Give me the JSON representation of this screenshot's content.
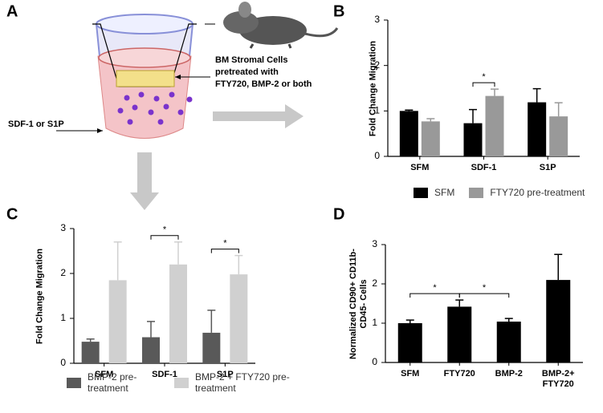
{
  "panel_a": {
    "label": "A",
    "stimulus": "SDF-1 or S1P",
    "cells": [
      "BM Stromal Cells",
      "pretreated with",
      "FTY720, BMP-2 or both"
    ]
  },
  "chart_data": [
    {
      "type": "bar",
      "label": "B",
      "y_label": "Fold  Change Migration",
      "categories": [
        "SFM",
        "SDF-1",
        "S1P"
      ],
      "series": [
        {
          "name": "SFM",
          "color": "#000000",
          "values": [
            1.0,
            0.73,
            1.19
          ],
          "errors": [
            0.02,
            0.3,
            0.3
          ]
        },
        {
          "name": "FTY720 pre-treatment",
          "color": "#999999",
          "values": [
            0.77,
            1.33,
            0.88
          ],
          "errors": [
            0.06,
            0.15,
            0.3
          ]
        }
      ],
      "ylim": [
        0,
        3
      ],
      "yticks": [
        0,
        1,
        2,
        3
      ],
      "legend": "bottom",
      "annotations": [
        {
          "text": "*",
          "category": "SDF-1"
        }
      ]
    },
    {
      "type": "bar",
      "label": "C",
      "y_label": "Fold  Change Migration",
      "categories": [
        "SFM",
        "SDF-1",
        "S1P"
      ],
      "series": [
        {
          "name": "BMP-2 pre-treatment",
          "color": "#595959",
          "values": [
            0.48,
            0.58,
            0.68
          ],
          "errors": [
            0.06,
            0.35,
            0.5
          ]
        },
        {
          "name": "BMP-2 + FTY720 pre-treatment",
          "color": "#d0d0d0",
          "values": [
            1.85,
            2.2,
            1.98
          ],
          "errors": [
            0.85,
            0.5,
            0.42
          ]
        }
      ],
      "ylim": [
        0,
        3
      ],
      "yticks": [
        0,
        1,
        2,
        3
      ],
      "legend": "bottom",
      "annotations": [
        {
          "text": "*",
          "category": "SDF-1"
        },
        {
          "text": "*",
          "category": "S1P"
        }
      ]
    },
    {
      "type": "bar",
      "label": "D",
      "y_label": "Normalized CD90+ CD11b- CD45- Cells",
      "categories": [
        "SFM",
        "FTY720",
        "BMP-2",
        "BMP-2+ FTY720"
      ],
      "series": [
        {
          "color": "#000000",
          "values": [
            1.0,
            1.42,
            1.04,
            2.1
          ],
          "errors": [
            0.08,
            0.17,
            0.08,
            0.65
          ]
        }
      ],
      "ylim": [
        0,
        3
      ],
      "yticks": [
        0,
        1,
        2,
        3
      ],
      "annotations": [
        {
          "text": "*",
          "from": "SFM",
          "to": "FTY720"
        },
        {
          "text": "*",
          "from": "FTY720",
          "to": "BMP-2"
        }
      ]
    }
  ]
}
